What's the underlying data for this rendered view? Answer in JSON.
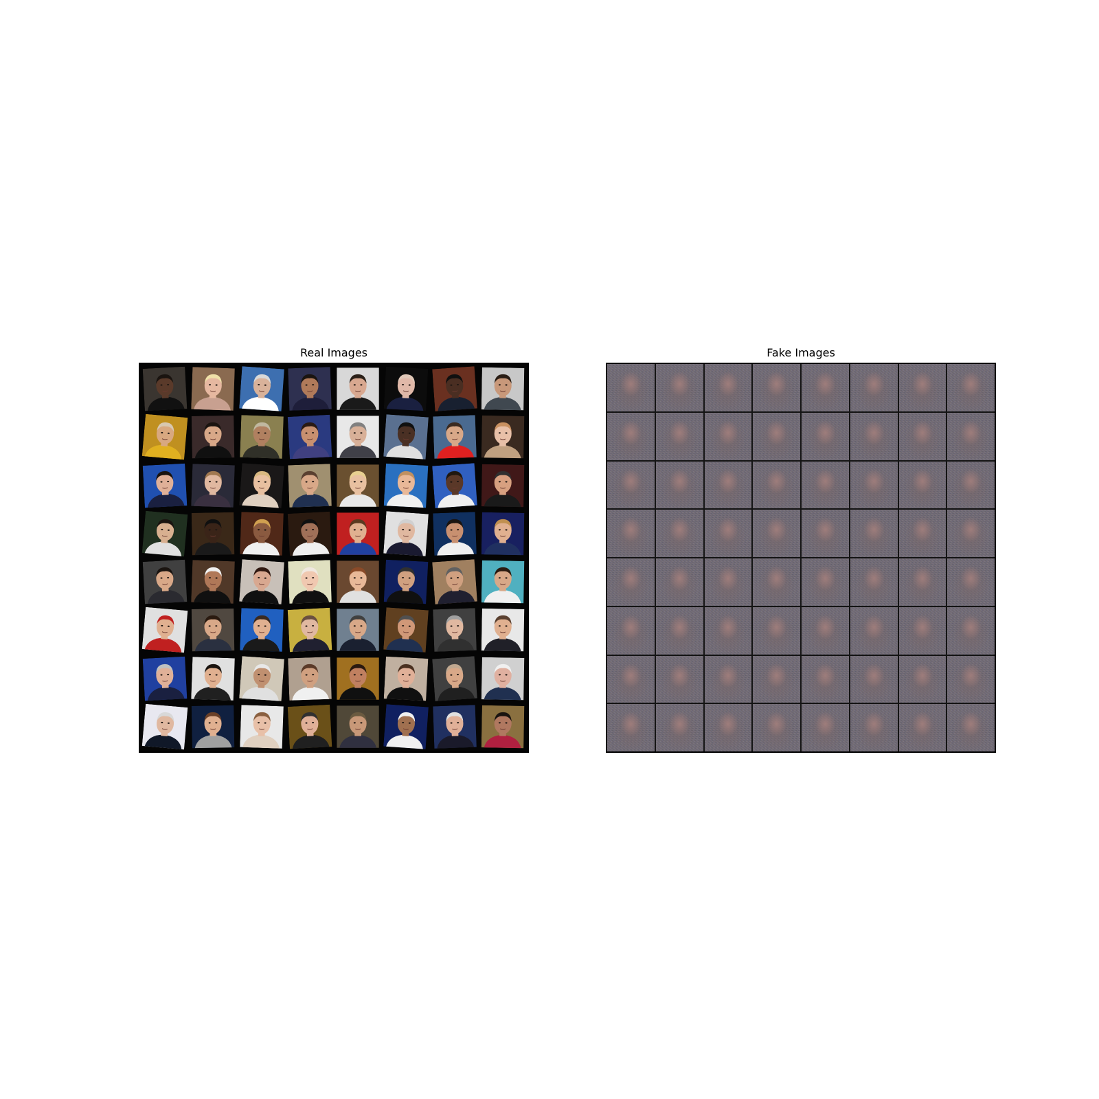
{
  "figure": {
    "real_panel": {
      "title": "Real Images",
      "rows": 8,
      "cols": 8,
      "tiles": [
        {
          "bg": "#3a3530",
          "skin": "#5a3a2a",
          "hair": "#1a1410",
          "shirt": "#111111"
        },
        {
          "bg": "#8a6a50",
          "skin": "#e6b8a0",
          "hair": "#efe0a8",
          "shirt": "#c8a090"
        },
        {
          "bg": "#3d6fb0",
          "skin": "#d9b29a",
          "hair": "#d8d8d8",
          "shirt": "#ffffff"
        },
        {
          "bg": "#2e3050",
          "skin": "#b07a5a",
          "hair": "#1a1410",
          "shirt": "#1e1e3a"
        },
        {
          "bg": "#d8d8d8",
          "skin": "#d8a890",
          "hair": "#2a2018",
          "shirt": "#1a1a1a"
        },
        {
          "bg": "#0c0c0c",
          "skin": "#e0b8a8",
          "hair": "#e0c8b8",
          "shirt": "#1a2040"
        },
        {
          "bg": "#6a3020",
          "skin": "#4a2e22",
          "hair": "#101010",
          "shirt": "#182030"
        },
        {
          "bg": "#c8c8c8",
          "skin": "#c8987a",
          "hair": "#2a1e16",
          "shirt": "#404850"
        },
        {
          "bg": "#c09020",
          "skin": "#d8a880",
          "hair": "#d8c8b0",
          "shirt": "#e0b020"
        },
        {
          "bg": "#3a2a2a",
          "skin": "#d8a888",
          "hair": "#1a1410",
          "shirt": "#101010"
        },
        {
          "bg": "#8a8050",
          "skin": "#b08060",
          "hair": "#c0b8a0",
          "shirt": "#303028"
        },
        {
          "bg": "#2a3a80",
          "skin": "#c89070",
          "hair": "#2a1a14",
          "shirt": "#404080"
        },
        {
          "bg": "#e8e8e8",
          "skin": "#d8b098",
          "hair": "#808080",
          "shirt": "#404048"
        },
        {
          "bg": "#5a7090",
          "skin": "#4a3024",
          "hair": "#101010",
          "shirt": "#e0e0e0"
        },
        {
          "bg": "#4a6a90",
          "skin": "#d8a888",
          "hair": "#3a2a20",
          "shirt": "#e02020"
        },
        {
          "bg": "#3a2a20",
          "skin": "#e8c0a8",
          "hair": "#c89060",
          "shirt": "#c0a080"
        },
        {
          "bg": "#2050b0",
          "skin": "#e0b098",
          "hair": "#1a1410",
          "shirt": "#1a2040"
        },
        {
          "bg": "#2a2a38",
          "skin": "#e0b8a0",
          "hair": "#a07850",
          "shirt": "#3a3040"
        },
        {
          "bg": "#1a1818",
          "skin": "#e8c0a0",
          "hair": "#d8b880",
          "shirt": "#e0d0c0"
        },
        {
          "bg": "#a09070",
          "skin": "#d8a888",
          "hair": "#5a4030",
          "shirt": "#203050"
        },
        {
          "bg": "#6a5030",
          "skin": "#e8c0a0",
          "hair": "#e8d090",
          "shirt": "#e8e8e8"
        },
        {
          "bg": "#2a70c0",
          "skin": "#e8b898",
          "hair": "#c09060",
          "shirt": "#f0f0f0"
        },
        {
          "bg": "#3060c0",
          "skin": "#5a3828",
          "hair": "#201810",
          "shirt": "#f0f0f0"
        },
        {
          "bg": "#401818",
          "skin": "#d8a080",
          "hair": "#303030",
          "shirt": "#1a1a1a"
        },
        {
          "bg": "#203020",
          "skin": "#d8b090",
          "hair": "#1a1410",
          "shirt": "#e0e0e0"
        },
        {
          "bg": "#3a2818",
          "skin": "#3a2418",
          "hair": "#101010",
          "shirt": "#1a1a1a"
        },
        {
          "bg": "#502818",
          "skin": "#8a5a40",
          "hair": "#d0a050",
          "shirt": "#f0f0f0"
        },
        {
          "bg": "#2a1a10",
          "skin": "#a07058",
          "hair": "#101010",
          "shirt": "#f0f0f0"
        },
        {
          "bg": "#c02020",
          "skin": "#e0b090",
          "hair": "#5a3a20",
          "shirt": "#2040a0"
        },
        {
          "bg": "#e0e0e0",
          "skin": "#e0b8a0",
          "hair": "#d0d0d0",
          "shirt": "#1a1a30"
        },
        {
          "bg": "#103060",
          "skin": "#c89070",
          "hair": "#1a1410",
          "shirt": "#f0f0f0"
        },
        {
          "bg": "#182060",
          "skin": "#e0b090",
          "hair": "#c09050",
          "shirt": "#203060"
        },
        {
          "bg": "#404040",
          "skin": "#d8a888",
          "hair": "#1a1410",
          "shirt": "#2a2a30"
        },
        {
          "bg": "#503828",
          "skin": "#b07858",
          "hair": "#f0f0f0",
          "shirt": "#101010"
        },
        {
          "bg": "#c8c0b8",
          "skin": "#d8a890",
          "hair": "#301810",
          "shirt": "#101010"
        },
        {
          "bg": "#e0e0c0",
          "skin": "#f0c8b0",
          "hair": "#f0e8e0",
          "shirt": "#101010"
        },
        {
          "bg": "#6a4830",
          "skin": "#e8b898",
          "hair": "#8a4a28",
          "shirt": "#e0e0e0"
        },
        {
          "bg": "#102060",
          "skin": "#d0a080",
          "hair": "#303030",
          "shirt": "#101010"
        },
        {
          "bg": "#a08060",
          "skin": "#d0a080",
          "hair": "#606060",
          "shirt": "#202030"
        },
        {
          "bg": "#50b0c0",
          "skin": "#d8a888",
          "hair": "#2a1a10",
          "shirt": "#f0f0f0"
        },
        {
          "bg": "#e0e0e0",
          "skin": "#e0b090",
          "hair": "#c02020",
          "shirt": "#c02020"
        },
        {
          "bg": "#504840",
          "skin": "#d8a888",
          "hair": "#2a1a10",
          "shirt": "#2a3040"
        },
        {
          "bg": "#2060c0",
          "skin": "#e0b090",
          "hair": "#3a2a20",
          "shirt": "#1a1a1a"
        },
        {
          "bg": "#c8b040",
          "skin": "#e0b8a0",
          "hair": "#6a5040",
          "shirt": "#202030"
        },
        {
          "bg": "#708090",
          "skin": "#d8a888",
          "hair": "#404040",
          "shirt": "#1a2030"
        },
        {
          "bg": "#604020",
          "skin": "#d09878",
          "hair": "#505050",
          "shirt": "#203050"
        },
        {
          "bg": "#404040",
          "skin": "#e0b8a0",
          "hair": "#a0a0a0",
          "shirt": "#303030"
        },
        {
          "bg": "#e8e8e8",
          "skin": "#e0b090",
          "hair": "#5a4030",
          "shirt": "#202028"
        },
        {
          "bg": "#2040a0",
          "skin": "#e0b098",
          "hair": "#c0c0c0",
          "shirt": "#1a2040"
        },
        {
          "bg": "#e0e0e0",
          "skin": "#e0b090",
          "hair": "#1a1410",
          "shirt": "#202020"
        },
        {
          "bg": "#d0c8b8",
          "skin": "#c09070",
          "hair": "#e8e8e8",
          "shirt": "#e0e0e0"
        },
        {
          "bg": "#b0a090",
          "skin": "#d0a080",
          "hair": "#5a3a28",
          "shirt": "#f0f0f0"
        },
        {
          "bg": "#a07020",
          "skin": "#c08060",
          "hair": "#2a1a10",
          "shirt": "#101010"
        },
        {
          "bg": "#c0b0a0",
          "skin": "#e0b098",
          "hair": "#4a3020",
          "shirt": "#101010"
        },
        {
          "bg": "#404040",
          "skin": "#d8a888",
          "hair": "#c0a890",
          "shirt": "#202020"
        },
        {
          "bg": "#d0d0d0",
          "skin": "#e0b0a0",
          "hair": "#f0f0f0",
          "shirt": "#203050"
        },
        {
          "bg": "#e8e8f0",
          "skin": "#e0b8a0",
          "hair": "#d8d8d8",
          "shirt": "#101828"
        },
        {
          "bg": "#102040",
          "skin": "#e0b090",
          "hair": "#6a4028",
          "shirt": "#a0a0a0"
        },
        {
          "bg": "#e8e8e8",
          "skin": "#e8c0a8",
          "hair": "#8a6040",
          "shirt": "#e0d0c0"
        },
        {
          "bg": "#6a5018",
          "skin": "#e0b098",
          "hair": "#303030",
          "shirt": "#202020"
        },
        {
          "bg": "#504838",
          "skin": "#c89878",
          "hair": "#6a5a40",
          "shirt": "#303040"
        },
        {
          "bg": "#102060",
          "skin": "#a07050",
          "hair": "#f0f0f0",
          "shirt": "#f0f0f0"
        },
        {
          "bg": "#203060",
          "skin": "#e0b098",
          "hair": "#e0e0e0",
          "shirt": "#1a1a2a"
        },
        {
          "bg": "#8a7040",
          "skin": "#b07860",
          "hair": "#1a1410",
          "shirt": "#b02040"
        }
      ]
    },
    "fake_panel": {
      "title": "Fake Images",
      "rows": 8,
      "cols": 8
    }
  }
}
